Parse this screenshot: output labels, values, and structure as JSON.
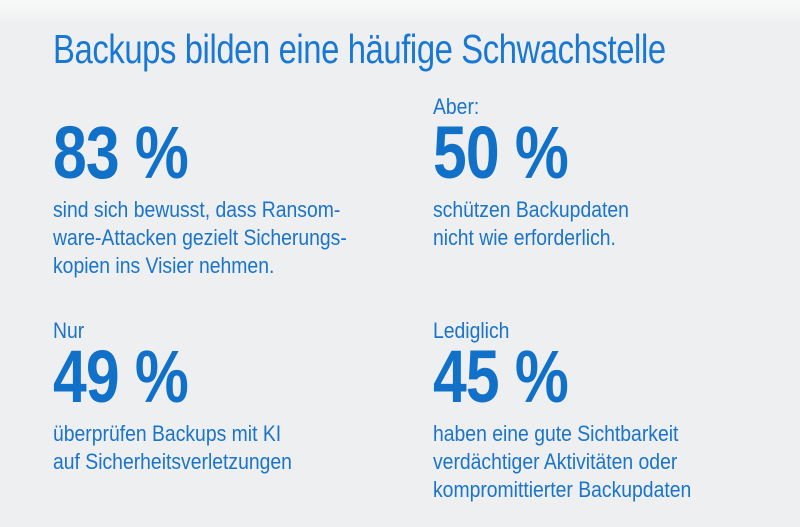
{
  "header": {
    "title": "Backups bilden eine häufige Schwachstelle"
  },
  "colors": {
    "background": "#eeeff0",
    "title_blue": "#1878d3",
    "number_blue": "#1170c8",
    "text_blue": "#1a74cc"
  },
  "stats": [
    {
      "label": "",
      "value": "83 %",
      "description": "sind sich bewusst, dass Ransom-\nware-Attacken gezielt Sicherungs-\nkopien ins Visier nehmen."
    },
    {
      "label": "Aber:",
      "value": "50 %",
      "description": "schützen Backupdaten\nnicht wie erforderlich."
    },
    {
      "label": "Nur",
      "value": "49 %",
      "description": "überprüfen Backups mit KI\nauf Sicherheitsverletzungen"
    },
    {
      "label": "Lediglich",
      "value": "45 %",
      "description": "haben eine gute Sichtbarkeit\nverdächtiger Aktivitäten oder\nkompromittierter Backupdaten"
    }
  ],
  "chart_data": {
    "type": "table",
    "title": "Backups bilden eine häufige Schwachstelle",
    "unit": "%",
    "values": [
      83,
      50,
      49,
      45
    ],
    "qualifiers": [
      "",
      "Aber:",
      "Nur",
      "Lediglich"
    ],
    "categories": [
      "sind sich bewusst, dass Ransomware-Attacken gezielt Sicherungskopien ins Visier nehmen.",
      "schützen Backupdaten nicht wie erforderlich.",
      "überprüfen Backups mit KI auf Sicherheitsverletzungen",
      "haben eine gute Sichtbarkeit verdächtiger Aktivitäten oder kompromittierter Backupdaten"
    ],
    "layout": "2x2 grid of stat callouts, no axes, monochrome blue on light gray"
  }
}
